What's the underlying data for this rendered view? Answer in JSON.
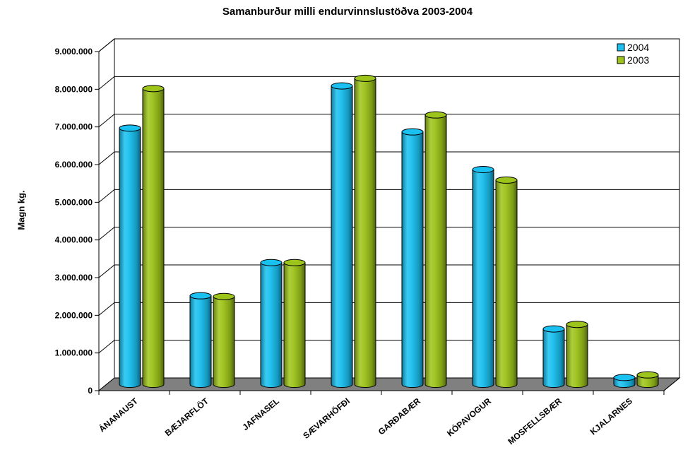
{
  "chart_data": {
    "type": "bar",
    "title": "Samanburður milli endurvinnslustöðva 2003-2004",
    "xlabel": "",
    "ylabel": "Magn kg.",
    "categories": [
      "ÁNANAUST",
      "BÆJARFLÖT",
      "JAFNASEL",
      "SÆVARHÖFÐI",
      "GARÐABÆR",
      "KÓPAVOGUR",
      "MOSFELLSBÆR",
      "KJALARNES"
    ],
    "series": [
      {
        "name": "2004",
        "color": "#19c0f0",
        "values": [
          6800000,
          2350000,
          3230000,
          7920000,
          6700000,
          5700000,
          1470000,
          180000
        ]
      },
      {
        "name": "2003",
        "color": "#9dc41a",
        "values": [
          7850000,
          2330000,
          3230000,
          8120000,
          7150000,
          5420000,
          1590000,
          250000
        ]
      }
    ],
    "ylim": [
      0,
      9000000
    ],
    "yticks": [
      "0",
      "1.000.000",
      "2.000.000",
      "3.000.000",
      "4.000.000",
      "5.000.000",
      "6.000.000",
      "7.000.000",
      "8.000.000",
      "9.000.000"
    ],
    "grid": true,
    "legend_position": "top-right",
    "floor_color": "#808080"
  }
}
